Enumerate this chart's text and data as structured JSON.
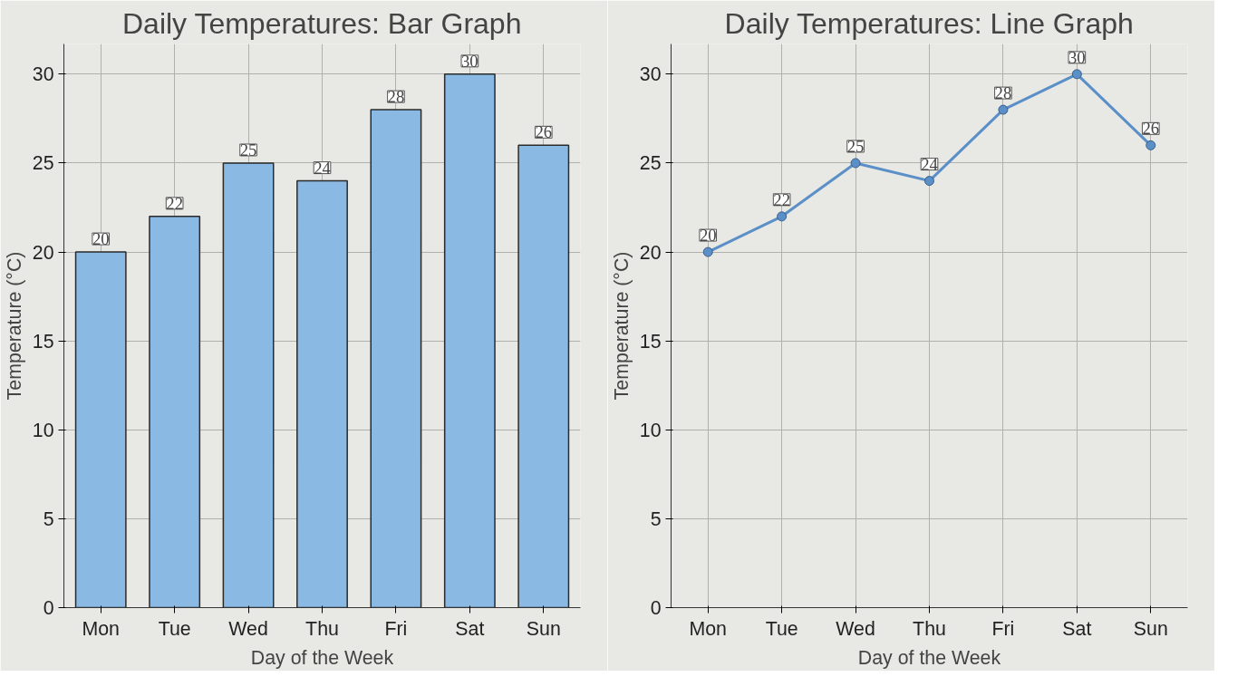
{
  "chart_data": [
    {
      "type": "bar",
      "title": "Daily Temperatures: Bar Graph",
      "xlabel": "Day of the Week",
      "ylabel": "Temperature (°C)",
      "categories": [
        "Mon",
        "Tue",
        "Wed",
        "Thu",
        "Fri",
        "Sat",
        "Sun"
      ],
      "values": [
        20,
        22,
        25,
        24,
        28,
        30,
        26
      ],
      "color": "#8ab9e3",
      "ylim": [
        0,
        31.7
      ],
      "yticks": [
        0,
        5,
        10,
        15,
        20,
        25,
        30
      ],
      "grid": true,
      "data_labels": true
    },
    {
      "type": "line",
      "title": "Daily Temperatures: Line Graph",
      "xlabel": "Day of the Week",
      "ylabel": "Temperature (°C)",
      "categories": [
        "Mon",
        "Tue",
        "Wed",
        "Thu",
        "Fri",
        "Sat",
        "Sun"
      ],
      "values": [
        20,
        22,
        25,
        24,
        28,
        30,
        26
      ],
      "color": "#5b8fc7",
      "ylim": [
        0,
        31.7
      ],
      "yticks": [
        0,
        5,
        10,
        15,
        20,
        25,
        30
      ],
      "grid": true,
      "data_labels": true,
      "marker": "circle",
      "line_style": "solid"
    }
  ]
}
